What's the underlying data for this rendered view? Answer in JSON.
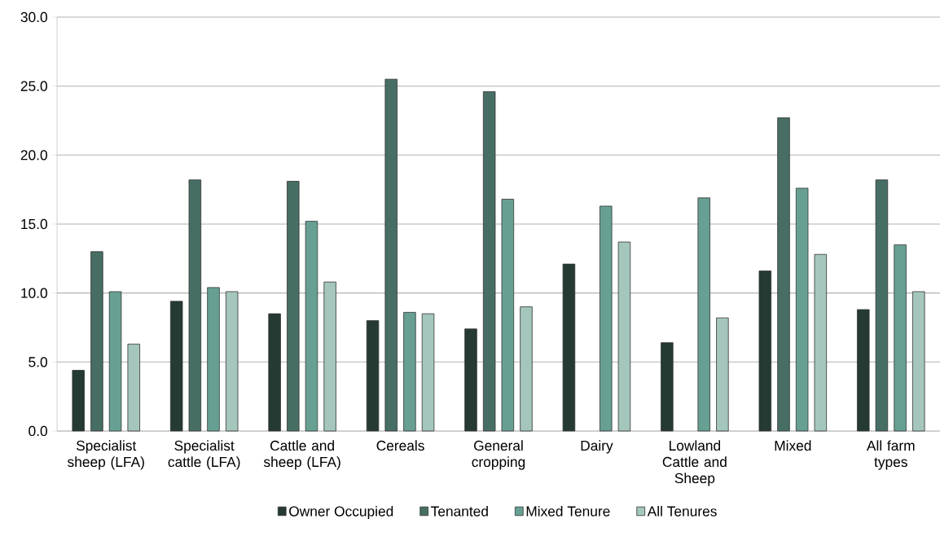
{
  "chart_data": {
    "type": "bar",
    "categories": [
      "Specialist sheep (LFA)",
      "Specialist cattle (LFA)",
      "Cattle and sheep (LFA)",
      "Cereals",
      "General cropping",
      "Dairy",
      "Lowland Cattle and Sheep",
      "Mixed",
      "All farm types"
    ],
    "series": [
      {
        "name": "Owner Occupied",
        "color": "#243a33",
        "values": [
          4.4,
          9.4,
          8.5,
          8.0,
          7.4,
          12.1,
          6.4,
          11.6,
          8.8
        ]
      },
      {
        "name": "Tenanted",
        "color": "#476e64",
        "values": [
          13.0,
          18.2,
          18.1,
          25.5,
          24.6,
          null,
          null,
          22.7,
          18.2
        ]
      },
      {
        "name": "Mixed Tenure",
        "color": "#67a093",
        "values": [
          10.1,
          10.4,
          15.2,
          8.6,
          16.8,
          16.3,
          16.9,
          17.6,
          13.5
        ]
      },
      {
        "name": "All Tenures",
        "color": "#a4c6bd",
        "values": [
          6.3,
          10.1,
          10.8,
          8.5,
          9.0,
          13.7,
          8.2,
          12.8,
          10.1
        ]
      }
    ],
    "ylim": [
      0,
      30
    ],
    "yticks": [
      {
        "value": 0,
        "label": "0.0"
      },
      {
        "value": 5,
        "label": "5.0"
      },
      {
        "value": 10,
        "label": "10.0"
      },
      {
        "value": 15,
        "label": "15.0"
      },
      {
        "value": 20,
        "label": "20.0"
      },
      {
        "value": 25,
        "label": "25.0"
      },
      {
        "value": 30,
        "label": "30.0"
      }
    ],
    "grid": "y",
    "legend": "bottom"
  }
}
